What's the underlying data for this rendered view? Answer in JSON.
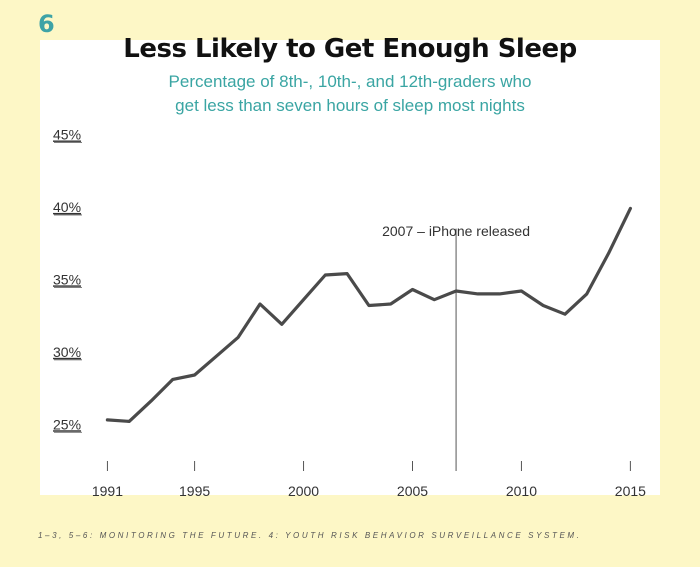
{
  "figure_number": "6",
  "footer": "1–3, 5–6: MONITORING THE FUTURE. 4: YOUTH RISK BEHAVIOR SURVEILLANCE SYSTEM.",
  "colors": {
    "background": "#fdf7c6",
    "panel": "#ffffff",
    "accent": "#3ea3a6",
    "line": "#4a4a4a"
  },
  "chart_data": {
    "type": "line",
    "title": "Less Likely to Get Enough Sleep",
    "subtitle": [
      "Percentage of 8th-, 10th-, and 12th-graders who",
      "get less than seven hours of sleep most nights"
    ],
    "x": [
      1991,
      1992,
      1993,
      1994,
      1995,
      1996,
      1997,
      1998,
      1999,
      2000,
      2001,
      2002,
      2003,
      2004,
      2005,
      2006,
      2007,
      2008,
      2009,
      2010,
      2011,
      2012,
      2013,
      2014,
      2015
    ],
    "series": [
      {
        "values": [
          25.3,
          25.2,
          26.6,
          28.1,
          28.4,
          29.7,
          31.0,
          33.3,
          31.9,
          33.6,
          35.3,
          35.4,
          33.2,
          33.3,
          34.3,
          33.6,
          34.2,
          34.0,
          34.0,
          34.2,
          33.2,
          32.6,
          34.0,
          36.8,
          39.9
        ]
      }
    ],
    "ylim": [
      21.5,
      46
    ],
    "xlim": [
      1990.2,
      2015.9
    ],
    "yticks": [
      25,
      30,
      35,
      40,
      45
    ],
    "ytick_labels": [
      "25%",
      "30%",
      "35%",
      "40%",
      "45%"
    ],
    "xticks": [
      1991,
      1995,
      2000,
      2005,
      2010,
      2015
    ],
    "xtick_labels": [
      "1991",
      "1995",
      "2000",
      "2005",
      "2010",
      "2015"
    ],
    "annotation": {
      "x": 2007,
      "y_top": 38.5,
      "label": "2007 – iPhone released"
    },
    "grid": false,
    "legend": "none"
  }
}
